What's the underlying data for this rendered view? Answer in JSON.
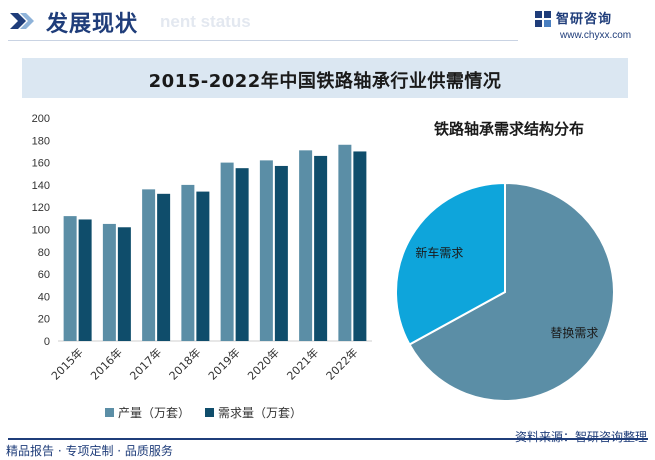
{
  "header": {
    "title": "发展现状",
    "ghost_text": "nent status",
    "logo_name": "智研咨询",
    "logo_url": "www.chyxx.com"
  },
  "title_band": {
    "text": "2015-2022年中国铁路轴承行业供需情况"
  },
  "colors": {
    "brand": "#1f3d7a",
    "production": "#5b8ea6",
    "demand": "#0f4d6b",
    "pie_replace": "#5b8ea6",
    "pie_new": "#0ea5db"
  },
  "chart_data": [
    {
      "type": "bar",
      "categories": [
        "2015年",
        "2016年",
        "2017年",
        "2018年",
        "2019年",
        "2020年",
        "2021年",
        "2022年"
      ],
      "series": [
        {
          "name": "产量（万套）",
          "values": [
            112,
            105,
            136,
            140,
            160,
            162,
            171,
            176
          ]
        },
        {
          "name": "需求量（万套）",
          "values": [
            109,
            102,
            132,
            134,
            155,
            157,
            166,
            170
          ]
        }
      ],
      "ylim": [
        0,
        200
      ],
      "yticks": [
        0,
        20,
        40,
        60,
        80,
        100,
        120,
        140,
        160,
        180,
        200
      ],
      "grid": false,
      "legend": "bottom"
    },
    {
      "type": "pie",
      "title": "铁路轴承需求结构分布",
      "slices": [
        {
          "label": "替换需求",
          "value": 67
        },
        {
          "label": "新车需求",
          "value": 33
        }
      ]
    }
  ],
  "footer": {
    "left": "精品报告 · 专项定制 · 品质服务",
    "right": "资料来源：智研咨询整理"
  }
}
